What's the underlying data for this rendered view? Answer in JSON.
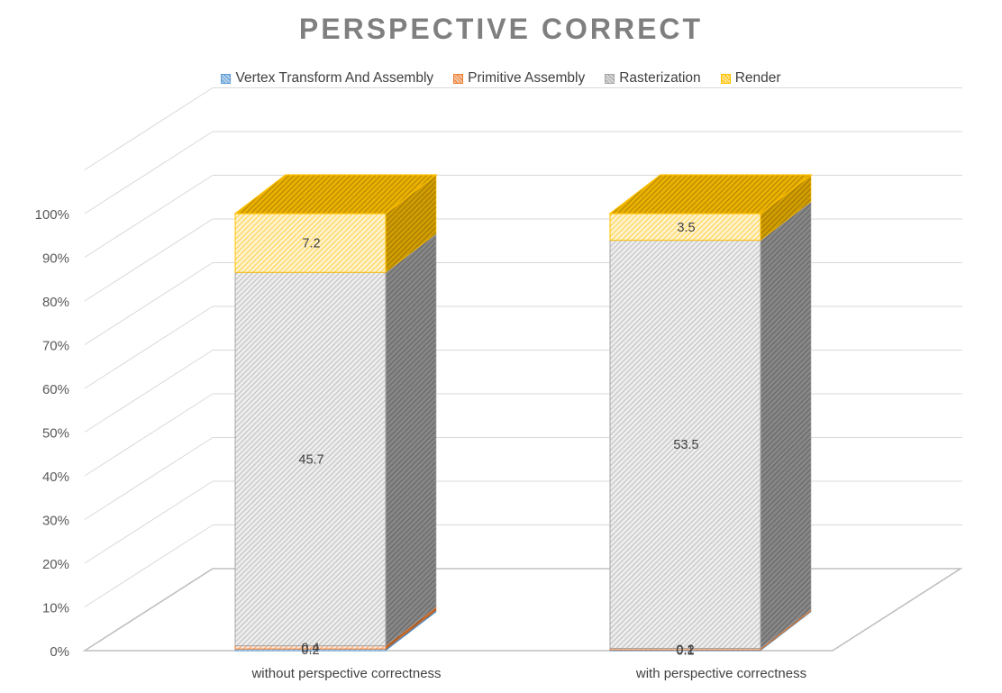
{
  "chart_data": {
    "type": "bar",
    "stacked": true,
    "percent_stacked": true,
    "three_d": true,
    "title": "PERSPECTIVE CORRECT",
    "categories": [
      "without perspective correctness",
      "with perspective correctness"
    ],
    "series": [
      {
        "name": "Vertex Transform And Assembly",
        "values": [
          0.2,
          0.1
        ],
        "color": "#5b9bd5"
      },
      {
        "name": "Primitive Assembly",
        "values": [
          0.4,
          0.2
        ],
        "color": "#ed7d31"
      },
      {
        "name": "Rasterization",
        "values": [
          45.7,
          53.5
        ],
        "color": "#a5a5a5"
      },
      {
        "name": "Render",
        "values": [
          7.2,
          3.5
        ],
        "color": "#ffc000"
      }
    ],
    "y_ticks": [
      "0%",
      "10%",
      "20%",
      "30%",
      "40%",
      "50%",
      "60%",
      "70%",
      "80%",
      "90%",
      "100%"
    ],
    "ylim": [
      0,
      100
    ],
    "xlabel": "",
    "ylabel": "",
    "legend_position": "top",
    "grid": true
  }
}
